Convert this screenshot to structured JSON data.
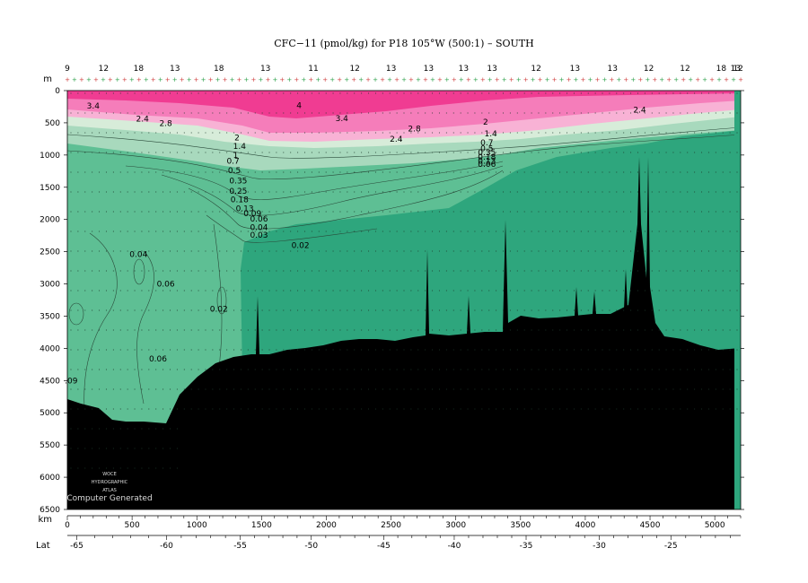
{
  "chart_data": {
    "type": "heatmap",
    "title": "CFC−11 (pmol/kg) for P18 105°W (500:1) – SOUTH",
    "y_unit_label": "m",
    "x_unit_label": "km",
    "lat_label": "Lat",
    "ylim": [
      0,
      6500
    ],
    "xlim": [
      0,
      5200
    ],
    "y_ticks": [
      0,
      500,
      1000,
      1500,
      2000,
      2500,
      3000,
      3500,
      4000,
      4500,
      5000,
      5500,
      6000,
      6500
    ],
    "x_ticks": [
      0,
      500,
      1000,
      1500,
      2000,
      2500,
      3000,
      3500,
      4000,
      4500,
      5000
    ],
    "lat_ticks": [
      -65,
      -60,
      -55,
      -50,
      -45,
      -40,
      -35,
      -30,
      -25
    ],
    "lat_km": [
      -65,
      73,
      -60,
      766,
      -55,
      1335,
      -50,
      1884,
      -45,
      2443,
      -40,
      2988,
      -35,
      3543,
      -30,
      4108,
      -25,
      4661
    ],
    "station_numbers": [
      "9",
      "12",
      "18",
      "13",
      "18",
      "13",
      "11",
      "12",
      "13",
      "13",
      "13",
      "13",
      "12",
      "13",
      "13",
      "12",
      "12",
      "18",
      "12",
      "13"
    ],
    "station_km": [
      0,
      280,
      550,
      830,
      1170,
      1530,
      1900,
      2220,
      2500,
      2790,
      3060,
      3280,
      3620,
      3920,
      4210,
      4490,
      4770,
      5050,
      5180,
      5160
    ],
    "contour_labels": [
      {
        "text": "3.4",
        "x": 200,
        "y": 240
      },
      {
        "text": "4",
        "x": 1790,
        "y": 230
      },
      {
        "text": "3.4",
        "x": 2120,
        "y": 430
      },
      {
        "text": "2.4",
        "x": 580,
        "y": 440
      },
      {
        "text": "2.8",
        "x": 760,
        "y": 510
      },
      {
        "text": "2.8",
        "x": 2680,
        "y": 590
      },
      {
        "text": "2.4",
        "x": 2540,
        "y": 750
      },
      {
        "text": "2.4",
        "x": 4420,
        "y": 300
      },
      {
        "text": "2",
        "x": 1310,
        "y": 730
      },
      {
        "text": "2",
        "x": 3230,
        "y": 490
      },
      {
        "text": "1.4",
        "x": 1330,
        "y": 860
      },
      {
        "text": "1.4",
        "x": 3270,
        "y": 670
      },
      {
        "text": "1",
        "x": 1300,
        "y": 1000
      },
      {
        "text": "0.7",
        "x": 1280,
        "y": 1090
      },
      {
        "text": "0.5",
        "x": 1290,
        "y": 1240
      },
      {
        "text": "0.35",
        "x": 1320,
        "y": 1400
      },
      {
        "text": "0.25",
        "x": 1320,
        "y": 1560
      },
      {
        "text": "0.18",
        "x": 1330,
        "y": 1690
      },
      {
        "text": "0.13",
        "x": 1370,
        "y": 1830
      },
      {
        "text": "0.09",
        "x": 1430,
        "y": 1910
      },
      {
        "text": "0.06",
        "x": 1480,
        "y": 1990
      },
      {
        "text": "0.04",
        "x": 1480,
        "y": 2120
      },
      {
        "text": "0.03",
        "x": 1480,
        "y": 2240
      },
      {
        "text": "0.02",
        "x": 1800,
        "y": 2400
      },
      {
        "text": "0.04",
        "x": 550,
        "y": 2540
      },
      {
        "text": "0.06",
        "x": 760,
        "y": 3000
      },
      {
        "text": "0.02",
        "x": 1170,
        "y": 3390
      },
      {
        "text": "0.06",
        "x": 700,
        "y": 4160
      },
      {
        "text": "0.03",
        "x": 1360,
        "y": 4230
      },
      {
        "text": ".09",
        "x": 30,
        "y": 4500
      },
      {
        "text": "0.7",
        "x": 3240,
        "y": 810
      },
      {
        "text": "0.5",
        "x": 3240,
        "y": 900
      },
      {
        "text": "0.35",
        "x": 3240,
        "y": 960
      },
      {
        "text": "0.18",
        "x": 3240,
        "y": 1030
      },
      {
        "text": "0.13",
        "x": 3240,
        "y": 1090
      },
      {
        "text": "0.06",
        "x": 3240,
        "y": 1140
      }
    ],
    "colors": {
      "very_high": "#f03c92",
      "high": "#f57dba",
      "mid": "#f8b2d5",
      "light": "#d7ecd9",
      "teal_light": "#a8d9bd",
      "green": "#5ebf94",
      "deep_green": "#2ea67d",
      "sea_floor": "#000000",
      "station_marker_red": "#d04040",
      "station_marker_green": "#2ea24b"
    }
  },
  "watermark": {
    "line1": "WOCE",
    "line2": "HYDROGRAPHIC",
    "line3": "ATLAS",
    "line4": "Computer Generated"
  }
}
